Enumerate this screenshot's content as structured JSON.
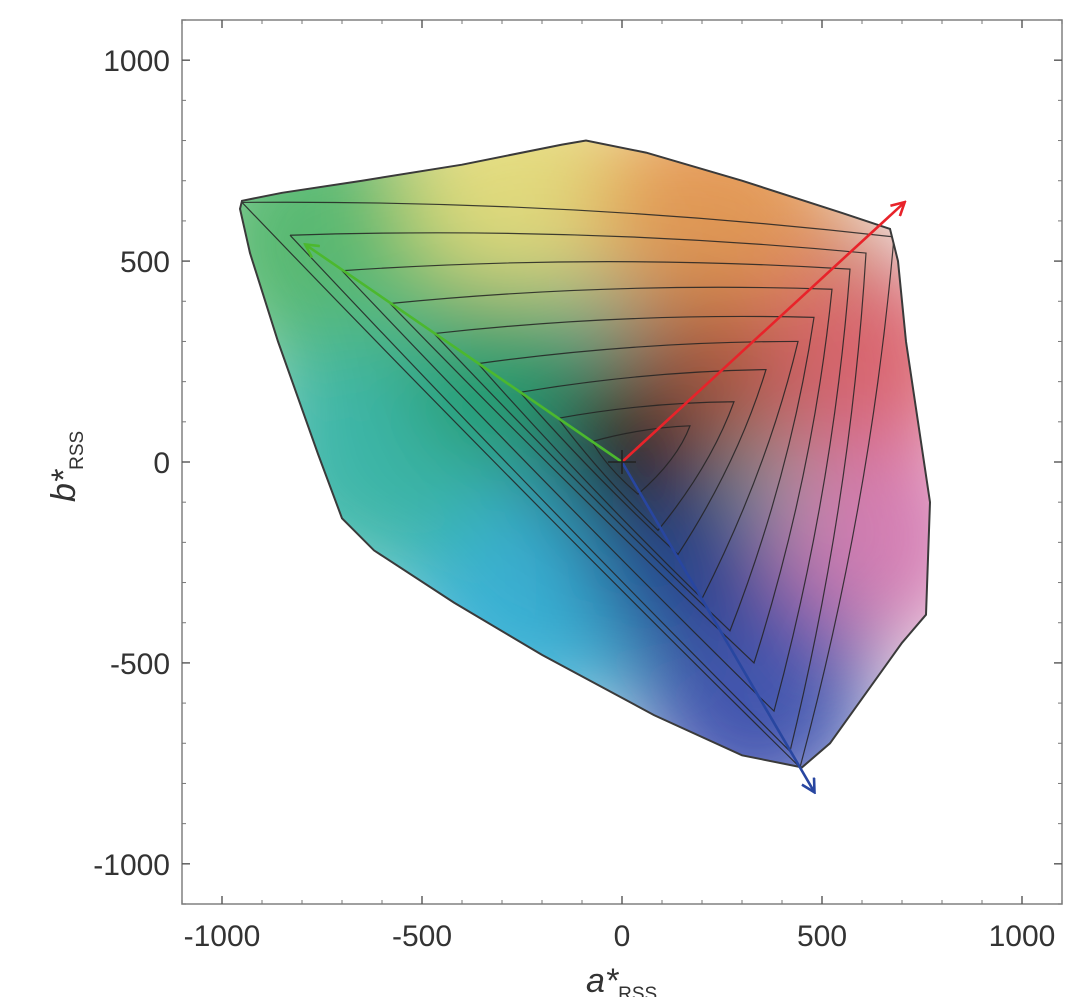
{
  "chart_data": {
    "type": "area",
    "title": "",
    "xlabel": {
      "main": "a*",
      "sub": "RSS"
    },
    "ylabel": {
      "main": "b*",
      "sub": "RSS"
    },
    "xlim": [
      -1100,
      1100
    ],
    "ylim": [
      -1100,
      1100
    ],
    "xticks": [
      -1000,
      -500,
      0,
      500,
      1000
    ],
    "yticks": [
      -1000,
      -500,
      0,
      500,
      1000
    ],
    "xtick_labels": [
      "-1000",
      "-500",
      "0",
      "500",
      "1000"
    ],
    "ytick_labels": [
      "-1000",
      "-500",
      "0",
      "500",
      "1000"
    ],
    "grid": false,
    "gamut_outline": {
      "x": [
        -950,
        -850,
        -650,
        -400,
        -150,
        -90,
        60,
        300,
        550,
        670,
        690,
        710,
        770,
        760,
        700,
        520,
        450,
        300,
        80,
        -200,
        -420,
        -620,
        -700,
        -760,
        -860,
        -930,
        -955
      ],
      "y": [
        650,
        670,
        700,
        740,
        790,
        800,
        770,
        700,
        620,
        580,
        500,
        300,
        -100,
        -380,
        -450,
        -700,
        -760,
        -730,
        -630,
        -480,
        -350,
        -220,
        -140,
        20,
        300,
        520,
        630
      ]
    },
    "contour_levels": {
      "green_corner": [
        -950,
        -830,
        -700,
        -580,
        -470,
        -360,
        -255,
        -160,
        -75
      ],
      "red_corner": [
        [
          680,
          560
        ],
        [
          610,
          520
        ],
        [
          570,
          480
        ],
        [
          525,
          430
        ],
        [
          480,
          360
        ],
        [
          440,
          300
        ],
        [
          360,
          230
        ],
        [
          280,
          150
        ],
        [
          170,
          90
        ],
        [
          90,
          30
        ]
      ],
      "blue_corner": [
        [
          445,
          -760
        ],
        [
          420,
          -720
        ],
        [
          380,
          -620
        ],
        [
          330,
          -500
        ],
        [
          270,
          -420
        ],
        [
          200,
          -340
        ],
        [
          140,
          -230
        ],
        [
          90,
          -170
        ],
        [
          40,
          -80
        ]
      ]
    },
    "arrows": [
      {
        "name": "green",
        "color": "#4cb82e",
        "x": [
          0,
          -790
        ],
        "y": [
          0,
          540
        ]
      },
      {
        "name": "red",
        "color": "#e8232a",
        "x": [
          0,
          705
        ],
        "y": [
          0,
          645
        ]
      },
      {
        "name": "blue",
        "color": "#2846a0",
        "x": [
          0,
          480
        ],
        "y": [
          0,
          -820
        ]
      }
    ],
    "origin_marker": {
      "x": 0,
      "y": 0
    },
    "colors": {
      "green": "#55b86e",
      "yellow": "#e8dc7a",
      "orange": "#e8964f",
      "red": "#e0606a",
      "magenta": "#d97ab3",
      "blue": "#3f4fb0",
      "cyan": "#33b0d6",
      "teal": "#3bb6a8",
      "dark_center": "#1a1a1a"
    }
  }
}
